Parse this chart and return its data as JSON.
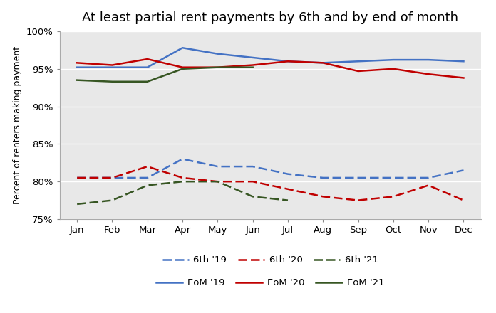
{
  "title": "At least partial rent payments by 6th and by end of month",
  "ylabel": "Percent of renters making payment",
  "months": [
    "Jan",
    "Feb",
    "Mar",
    "Apr",
    "May",
    "Jun",
    "Jul",
    "Aug",
    "Sep",
    "Oct",
    "Nov",
    "Dec"
  ],
  "ylim": [
    75,
    100
  ],
  "yticks": [
    75,
    80,
    85,
    90,
    95,
    100
  ],
  "ytick_labels": [
    "75%",
    "80%",
    "85%",
    "90%",
    "95%",
    "100%"
  ],
  "sixth_19": [
    80.5,
    80.5,
    80.5,
    83.0,
    82.0,
    82.0,
    81.0,
    80.5,
    80.5,
    80.5,
    80.5,
    81.5
  ],
  "sixth_20": [
    80.5,
    80.5,
    82.0,
    80.5,
    80.0,
    80.0,
    79.0,
    78.0,
    77.5,
    78.0,
    79.5,
    77.5
  ],
  "sixth_21": [
    77.0,
    77.5,
    79.5,
    80.0,
    80.0,
    78.0,
    77.5,
    null,
    null,
    null,
    null,
    null
  ],
  "eom_19": [
    95.2,
    95.2,
    95.2,
    97.8,
    97.0,
    96.5,
    96.0,
    95.8,
    96.0,
    96.2,
    96.2,
    96.0
  ],
  "eom_20": [
    95.8,
    95.5,
    96.3,
    95.2,
    95.2,
    95.5,
    96.0,
    95.8,
    94.7,
    95.0,
    94.3,
    93.8
  ],
  "eom_21": [
    93.5,
    93.3,
    93.3,
    95.0,
    95.2,
    95.2,
    null,
    null,
    null,
    null,
    null,
    null
  ],
  "color_blue": "#4472C4",
  "color_red": "#C00000",
  "color_green": "#375623",
  "plot_bg": "#E8E8E8",
  "fig_bg": "#FFFFFF",
  "grid_color": "#FFFFFF",
  "title_fontsize": 13,
  "axis_fontsize": 9,
  "tick_fontsize": 9.5,
  "legend_fontsize": 9.5
}
